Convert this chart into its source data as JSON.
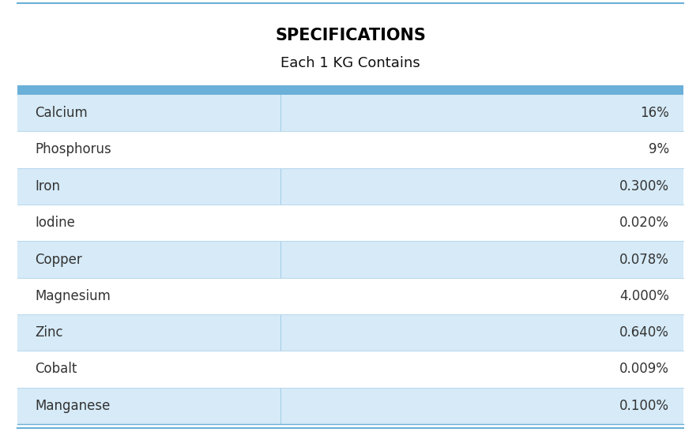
{
  "title": "SPECIFICATIONS",
  "subtitle": "Each 1 KG Contains",
  "rows": [
    [
      "Calcium",
      "16%"
    ],
    [
      "Phosphorus",
      "9%"
    ],
    [
      "Iron",
      "0.300%"
    ],
    [
      "Iodine",
      "0.020%"
    ],
    [
      "Copper",
      "0.078%"
    ],
    [
      "Magnesium",
      "4.000%"
    ],
    [
      "Zinc",
      "0.640%"
    ],
    [
      "Cobalt",
      "0.009%"
    ],
    [
      "Manganese",
      "0.100%"
    ]
  ],
  "shaded_rows": [
    0,
    2,
    4,
    6,
    8
  ],
  "bg_color": "#ffffff",
  "row_shaded_color": "#d6eaf7",
  "row_plain_color": "#ffffff",
  "border_color": "#6ab0d8",
  "title_color": "#000000",
  "subtitle_color": "#111111",
  "text_color": "#333333",
  "row_divider_color": "#b8d8ed",
  "title_fontsize": 15,
  "subtitle_fontsize": 13,
  "row_fontsize": 12,
  "top_line_color": "#6ab0d8",
  "thick_divider_color": "#6ab0d8"
}
